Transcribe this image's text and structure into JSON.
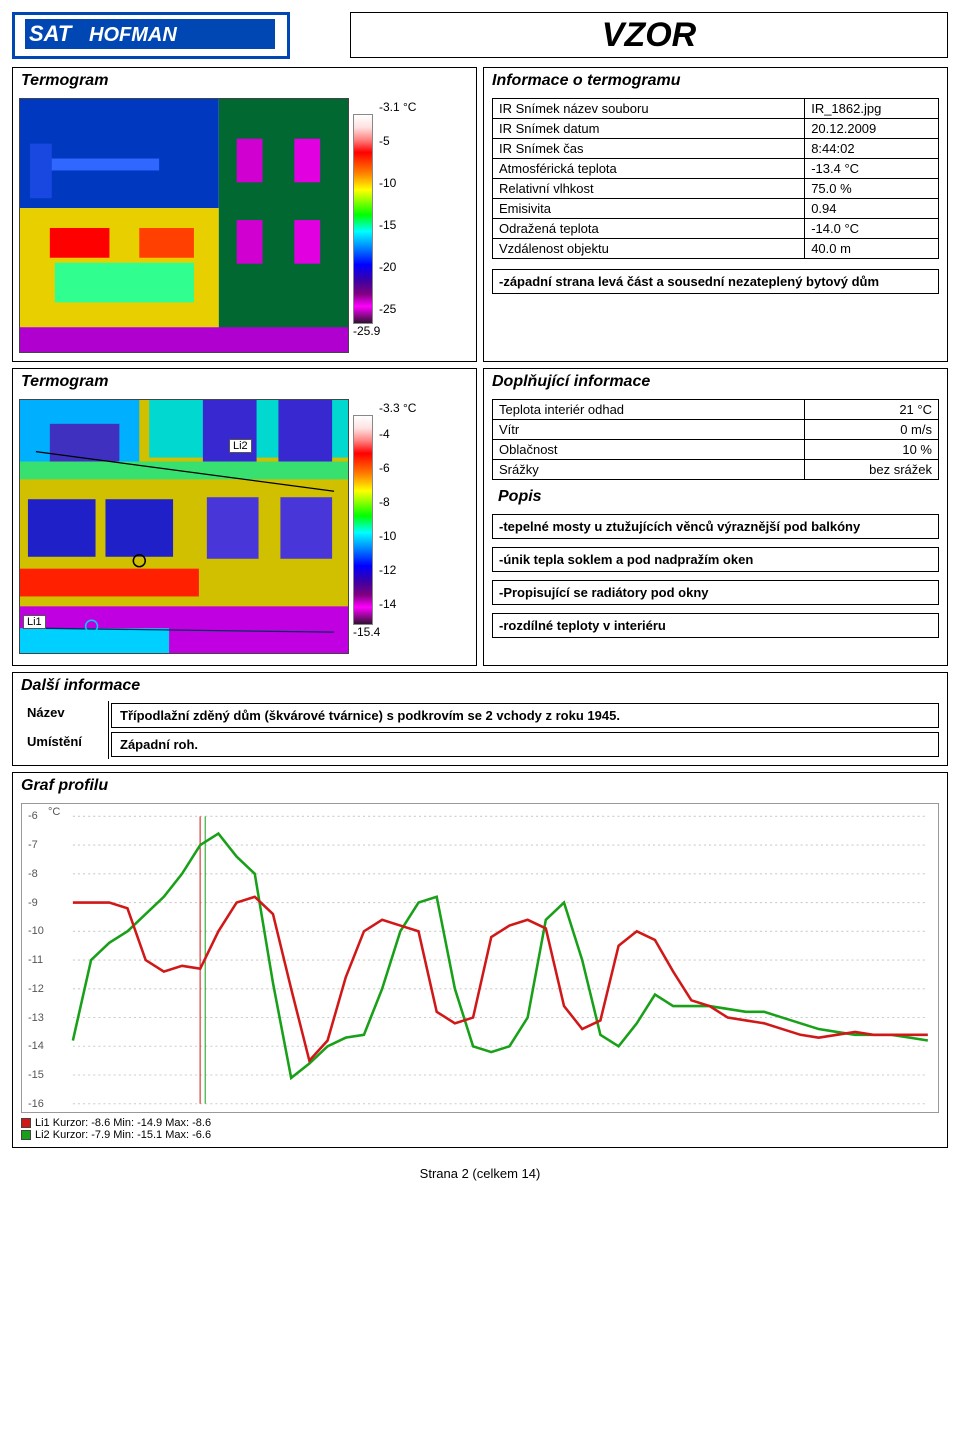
{
  "header": {
    "logo_sat": "SAT",
    "logo_hofman": "HOFMAN",
    "vzor": "VZOR"
  },
  "termogram1": {
    "title": "Termogram",
    "scale_top": "-3.1 °C",
    "scale_bottom": "-25.9",
    "ticks": [
      "-5",
      "-10",
      "-15",
      "-20",
      "-25"
    ]
  },
  "info": {
    "title": "Informace o termogramu",
    "rows": [
      [
        "IR Snímek název souboru",
        "IR_1862.jpg"
      ],
      [
        "IR Snímek datum",
        "20.12.2009"
      ],
      [
        "IR Snímek čas",
        "8:44:02"
      ],
      [
        "Atmosférická teplota",
        "-13.4 °C"
      ],
      [
        "Relativní vlhkost",
        "75.0 %"
      ],
      [
        "Emisivita",
        "0.94"
      ],
      [
        "Odražená teplota",
        "-14.0 °C"
      ],
      [
        "Vzdálenost objektu",
        "40.0 m"
      ]
    ],
    "note": "-západní strana levá část a sousední nezateplený bytový dům"
  },
  "termogram2": {
    "title": "Termogram",
    "scale_top": "-3.3 °C",
    "scale_bottom": "-15.4",
    "ticks": [
      "-4",
      "-6",
      "-8",
      "-10",
      "-12",
      "-14"
    ],
    "li1": "Li1",
    "li2": "Li2"
  },
  "dopln": {
    "title": "Doplňující informace",
    "rows": [
      [
        "Teplota interiér odhad",
        "21 °C"
      ],
      [
        "Vítr",
        "0 m/s"
      ],
      [
        "Oblačnost",
        "10 %"
      ],
      [
        "Srážky",
        "bez srážek"
      ]
    ],
    "popis_title": "Popis",
    "popis": [
      "-tepelné mosty u ztužujících věnců výraznější pod balkóny",
      "-únik tepla soklem a pod nadpražím oken",
      "-Propisující se radiátory pod okny",
      "-rozdílné teploty v interiéru"
    ]
  },
  "dalsi": {
    "title": "Další informace",
    "nazev_label": "Název",
    "nazev_value": "Třípodlažní zděný dům (škvárové tvárnice) s podkrovím se 2 vchody z roku 1945.",
    "umisteni_label": "Umístění",
    "umisteni_value": "Západní roh."
  },
  "graf": {
    "title": "Graf profilu",
    "y_unit": "°C",
    "yticks": [
      "-6",
      "-7",
      "-8",
      "-9",
      "-10",
      "-11",
      "-12",
      "-13",
      "-14",
      "-15",
      "-16"
    ],
    "legend_li1": "Li1 Kurzor: -8.6 Min: -14.9 Max: -8.6",
    "legend_li2": "Li2 Kurzor: -7.9 Min: -15.1 Max: -6.6",
    "li1_color": "#d01818",
    "li2_color": "#18a018",
    "series_li1": [
      -9,
      -9,
      -9,
      -9.2,
      -11,
      -11.4,
      -11.2,
      -11.3,
      -10,
      -9,
      -8.8,
      -9.4,
      -12,
      -14.5,
      -13.8,
      -11.6,
      -10,
      -9.6,
      -9.8,
      -10,
      -12.8,
      -13.2,
      -13,
      -10.2,
      -9.8,
      -9.6,
      -9.9,
      -12.6,
      -13.4,
      -13.1,
      -10.5,
      -10,
      -10.3,
      -11.4,
      -12.4,
      -12.6,
      -13,
      -13.1,
      -13.2,
      -13.4,
      -13.6,
      -13.7,
      -13.6,
      -13.5,
      -13.6,
      -13.6,
      -13.6,
      -13.6
    ],
    "series_li2": [
      -13.8,
      -11,
      -10.4,
      -10,
      -9.4,
      -8.8,
      -8,
      -7,
      -6.6,
      -7.4,
      -8,
      -11.8,
      -15.1,
      -14.6,
      -14,
      -13.7,
      -13.6,
      -12,
      -10,
      -9,
      -8.8,
      -12,
      -14,
      -14.2,
      -14,
      -13,
      -9.6,
      -9,
      -11,
      -13.6,
      -14,
      -13.2,
      -12.2,
      -12.6,
      -12.6,
      -12.6,
      -12.7,
      -12.8,
      -12.8,
      -13,
      -13.2,
      -13.4,
      -13.5,
      -13.6,
      -13.6,
      -13.6,
      -13.7,
      -13.8
    ]
  },
  "footer": "Strana 2 (celkem 14)"
}
